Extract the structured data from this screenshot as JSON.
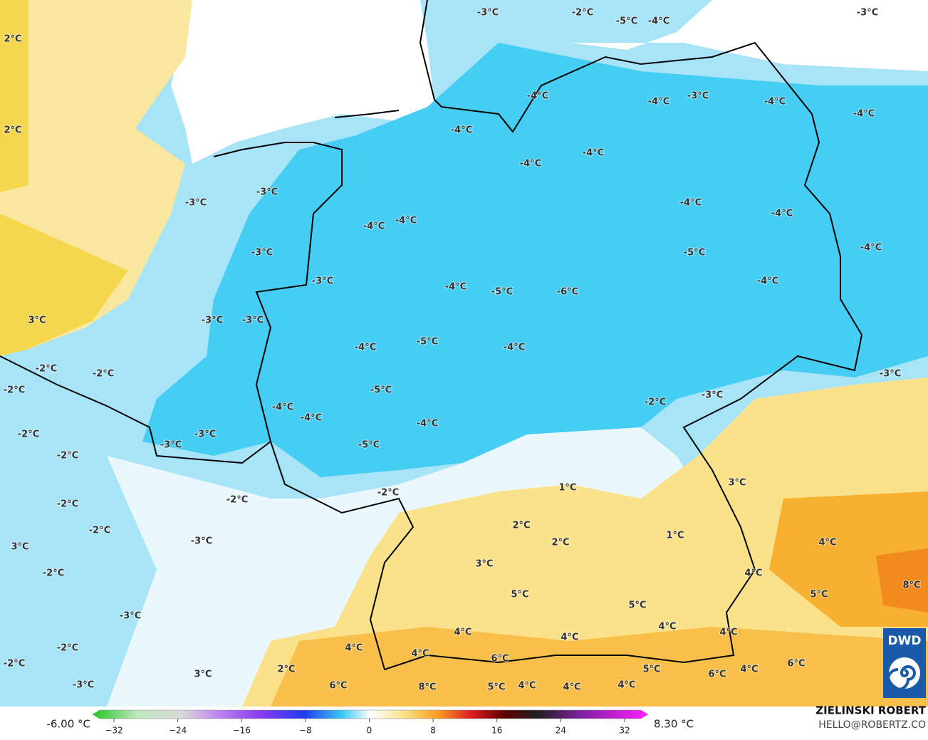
{
  "map": {
    "labels": [
      "2°C",
      "2°C",
      "3°C",
      "-3°C",
      "-2°C",
      "-5°C",
      "-4°C",
      "-3°C",
      "-4°C",
      "-4°C",
      "-3°C",
      "-4°C",
      "-4°C",
      "-4°C",
      "-4°C",
      "-4°C",
      "-3°C",
      "-3°C",
      "-4°C",
      "-4°C",
      "-4°C",
      "-4°C",
      "-4°C",
      "-3°C",
      "-5°C",
      "-3°C",
      "-4°C",
      "-4°C",
      "-5°C",
      "-6°C",
      "-3°C",
      "-3°C",
      "-4°C",
      "-5°C",
      "-4°C",
      "-2°C",
      "-2°C",
      "-3°C",
      "-2°C",
      "-5°C",
      "-3°C",
      "-2°C",
      "-4°C",
      "-4°C",
      "-2°C",
      "-3°C",
      "-4°C",
      "-3°C",
      "-5°C",
      "-2°C",
      "3°C",
      "1°C",
      "-2°C",
      "-2°C",
      "-2°C",
      "2°C",
      "-2°C",
      "1°C",
      "-3°C",
      "2°C",
      "3°C",
      "4°C",
      "3°C",
      "-2°C",
      "4°C",
      "8°C",
      "5°C",
      "5°C",
      "5°C",
      "-3°C",
      "4°C",
      "4°C",
      "4°C",
      "4°C",
      "-2°C",
      "4°C",
      "4°C",
      "6°C",
      "6°C",
      "-2°C",
      "2°C",
      "5°C",
      "6°C",
      "4°C",
      "3°C",
      "-3°C",
      "6°C",
      "8°C",
      "5°C",
      "4°C",
      "4°C",
      "4°C"
    ],
    "colorbar": {
      "min_label": "-6.00 °C",
      "max_label": "8.30 °C",
      "range": [
        -32,
        32
      ],
      "ticks": [
        {
          "value": -32,
          "label": "−32"
        },
        {
          "value": -24,
          "label": "−24"
        },
        {
          "value": -16,
          "label": "−16"
        },
        {
          "value": -8,
          "label": "−8"
        },
        0,
        8,
        16,
        24,
        32
      ]
    },
    "credit": {
      "name": "ZIELINSKI ROBERT",
      "contact": "HELLO@ROBERTZ.CO"
    },
    "logo": "DWD"
  }
}
